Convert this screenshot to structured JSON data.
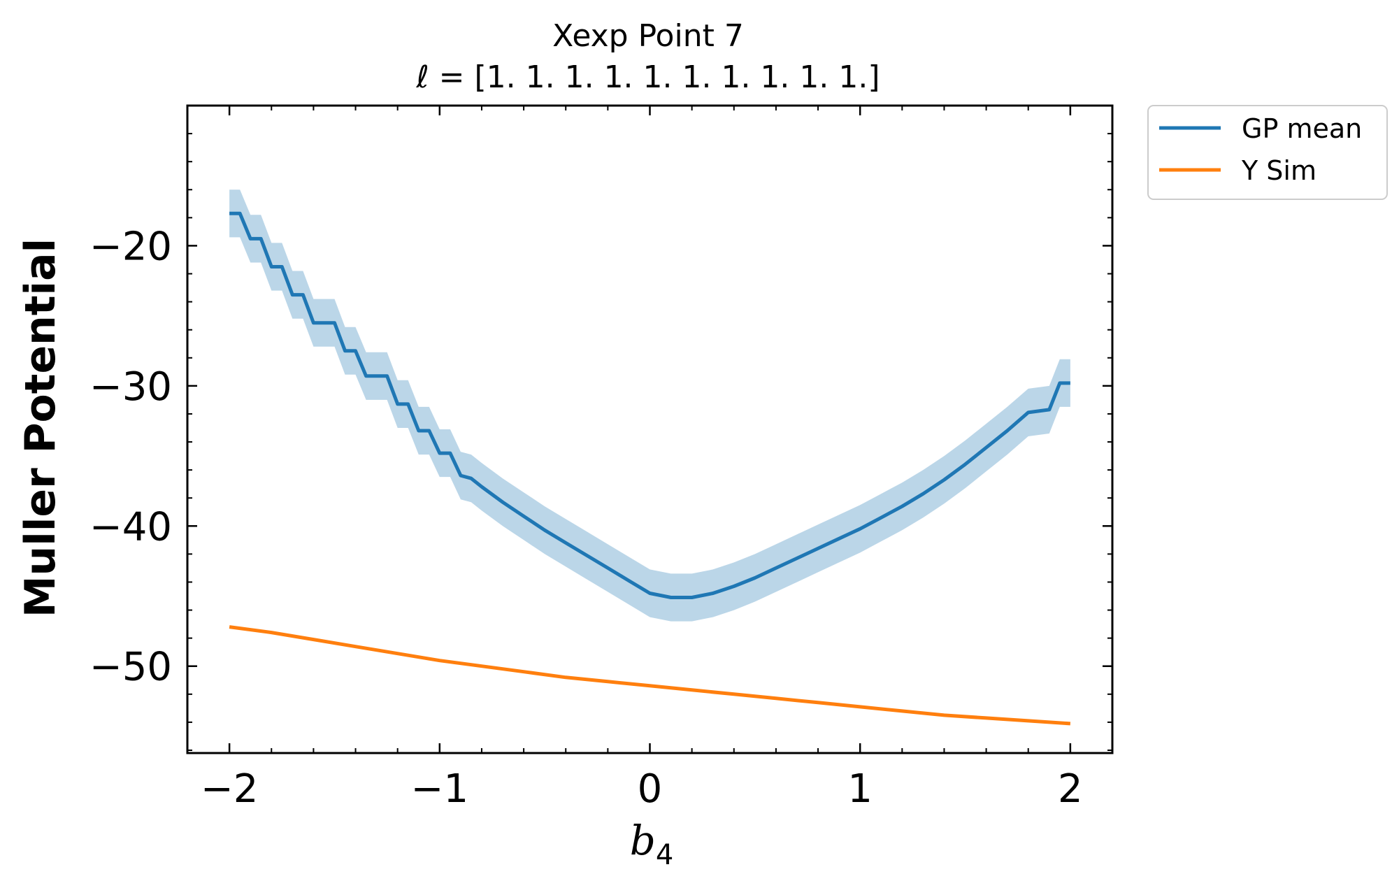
{
  "chart_data": {
    "type": "line",
    "title": "Xexp Point 7",
    "subtitle": "ℓ = [1. 1. 1. 1. 1. 1. 1. 1. 1. 1.]",
    "xlabel": "b",
    "xlabel_subscript": "4",
    "ylabel": "Muller Potential",
    "xlim": [
      -2.2,
      2.2
    ],
    "ylim": [
      -56.2,
      -10.0
    ],
    "x_ticks": [
      -2,
      -1,
      0,
      1,
      2
    ],
    "x_tick_labels": [
      "−2",
      "−1",
      "0",
      "1",
      "2"
    ],
    "y_ticks": [
      -50,
      -40,
      -30,
      -20
    ],
    "y_tick_labels": [
      "−50",
      "−40",
      "−30",
      "−20"
    ],
    "grid": false,
    "legend_position": "outside-top-right",
    "series": [
      {
        "name": "GP mean",
        "color": "#1f77b4",
        "band_color": "#1f77b4",
        "band_opacity": 0.3,
        "points": [
          [
            -2.0,
            -17.7
          ],
          [
            -1.95,
            -17.7
          ],
          [
            -1.9,
            -19.5
          ],
          [
            -1.85,
            -19.5
          ],
          [
            -1.8,
            -21.5
          ],
          [
            -1.75,
            -21.5
          ],
          [
            -1.7,
            -23.5
          ],
          [
            -1.65,
            -23.5
          ],
          [
            -1.6,
            -25.5
          ],
          [
            -1.55,
            -25.5
          ],
          [
            -1.5,
            -25.5
          ],
          [
            -1.45,
            -27.5
          ],
          [
            -1.4,
            -27.5
          ],
          [
            -1.35,
            -29.3
          ],
          [
            -1.3,
            -29.3
          ],
          [
            -1.25,
            -29.3
          ],
          [
            -1.2,
            -31.3
          ],
          [
            -1.15,
            -31.3
          ],
          [
            -1.1,
            -33.2
          ],
          [
            -1.05,
            -33.2
          ],
          [
            -1.0,
            -34.8
          ],
          [
            -0.95,
            -34.8
          ],
          [
            -0.9,
            -36.4
          ],
          [
            -0.85,
            -36.6
          ],
          [
            -0.8,
            -37.2
          ],
          [
            -0.7,
            -38.3
          ],
          [
            -0.6,
            -39.3
          ],
          [
            -0.5,
            -40.3
          ],
          [
            -0.4,
            -41.2
          ],
          [
            -0.3,
            -42.1
          ],
          [
            -0.2,
            -43.0
          ],
          [
            -0.1,
            -43.9
          ],
          [
            0.0,
            -44.8
          ],
          [
            0.1,
            -45.1
          ],
          [
            0.2,
            -45.1
          ],
          [
            0.3,
            -44.8
          ],
          [
            0.4,
            -44.3
          ],
          [
            0.5,
            -43.7
          ],
          [
            0.6,
            -43.0
          ],
          [
            0.7,
            -42.3
          ],
          [
            0.8,
            -41.6
          ],
          [
            0.9,
            -40.9
          ],
          [
            1.0,
            -40.2
          ],
          [
            1.1,
            -39.4
          ],
          [
            1.2,
            -38.6
          ],
          [
            1.3,
            -37.7
          ],
          [
            1.4,
            -36.7
          ],
          [
            1.5,
            -35.6
          ],
          [
            1.6,
            -34.4
          ],
          [
            1.7,
            -33.2
          ],
          [
            1.8,
            -31.9
          ],
          [
            1.9,
            -31.7
          ],
          [
            1.95,
            -29.8
          ],
          [
            2.0,
            -29.8
          ]
        ],
        "band_halfwidth": 1.7
      },
      {
        "name": "Y Sim",
        "color": "#ff7f0e",
        "points": [
          [
            -2.0,
            -47.2
          ],
          [
            -1.8,
            -47.6
          ],
          [
            -1.6,
            -48.1
          ],
          [
            -1.4,
            -48.6
          ],
          [
            -1.2,
            -49.1
          ],
          [
            -1.0,
            -49.6
          ],
          [
            -0.8,
            -50.0
          ],
          [
            -0.6,
            -50.4
          ],
          [
            -0.4,
            -50.8
          ],
          [
            -0.2,
            -51.1
          ],
          [
            0.0,
            -51.4
          ],
          [
            0.2,
            -51.7
          ],
          [
            0.4,
            -52.0
          ],
          [
            0.6,
            -52.3
          ],
          [
            0.8,
            -52.6
          ],
          [
            1.0,
            -52.9
          ],
          [
            1.2,
            -53.2
          ],
          [
            1.4,
            -53.5
          ],
          [
            1.6,
            -53.7
          ],
          [
            1.8,
            -53.9
          ],
          [
            2.0,
            -54.1
          ]
        ]
      }
    ]
  }
}
